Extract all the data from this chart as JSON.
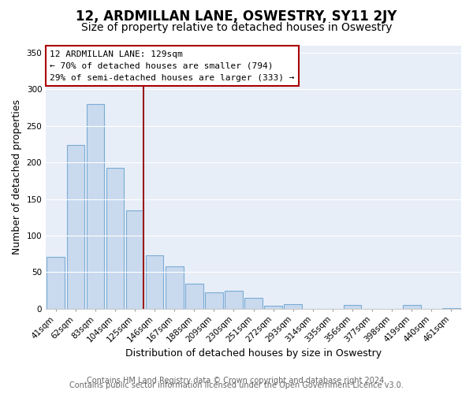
{
  "title": "12, ARDMILLAN LANE, OSWESTRY, SY11 2JY",
  "subtitle": "Size of property relative to detached houses in Oswestry",
  "xlabel": "Distribution of detached houses by size in Oswestry",
  "ylabel": "Number of detached properties",
  "bar_labels": [
    "41sqm",
    "62sqm",
    "83sqm",
    "104sqm",
    "125sqm",
    "146sqm",
    "167sqm",
    "188sqm",
    "209sqm",
    "230sqm",
    "251sqm",
    "272sqm",
    "293sqm",
    "314sqm",
    "335sqm",
    "356sqm",
    "377sqm",
    "398sqm",
    "419sqm",
    "440sqm",
    "461sqm"
  ],
  "bar_values": [
    71,
    224,
    280,
    193,
    134,
    73,
    58,
    34,
    23,
    25,
    15,
    4,
    6,
    0,
    0,
    5,
    0,
    0,
    5,
    0,
    1
  ],
  "bar_color": "#c9d9ee",
  "bar_edge_color": "#7aacd4",
  "vline_color": "#9b1a1a",
  "annotation_title": "12 ARDMILLAN LANE: 129sqm",
  "annotation_line1": "← 70% of detached houses are smaller (794)",
  "annotation_line2": "29% of semi-detached houses are larger (333) →",
  "annotation_box_color": "#ffffff",
  "annotation_box_edge": "#aa0000",
  "ylim": [
    0,
    360
  ],
  "yticks": [
    0,
    50,
    100,
    150,
    200,
    250,
    300,
    350
  ],
  "footer1": "Contains HM Land Registry data © Crown copyright and database right 2024.",
  "footer2": "Contains public sector information licensed under the Open Government Licence v3.0.",
  "fig_background": "#ffffff",
  "plot_background": "#e8eef8",
  "grid_color": "#ffffff",
  "title_fontsize": 12,
  "subtitle_fontsize": 10,
  "axis_label_fontsize": 9,
  "tick_fontsize": 7.5,
  "footer_fontsize": 7,
  "vline_bar_index": 4
}
